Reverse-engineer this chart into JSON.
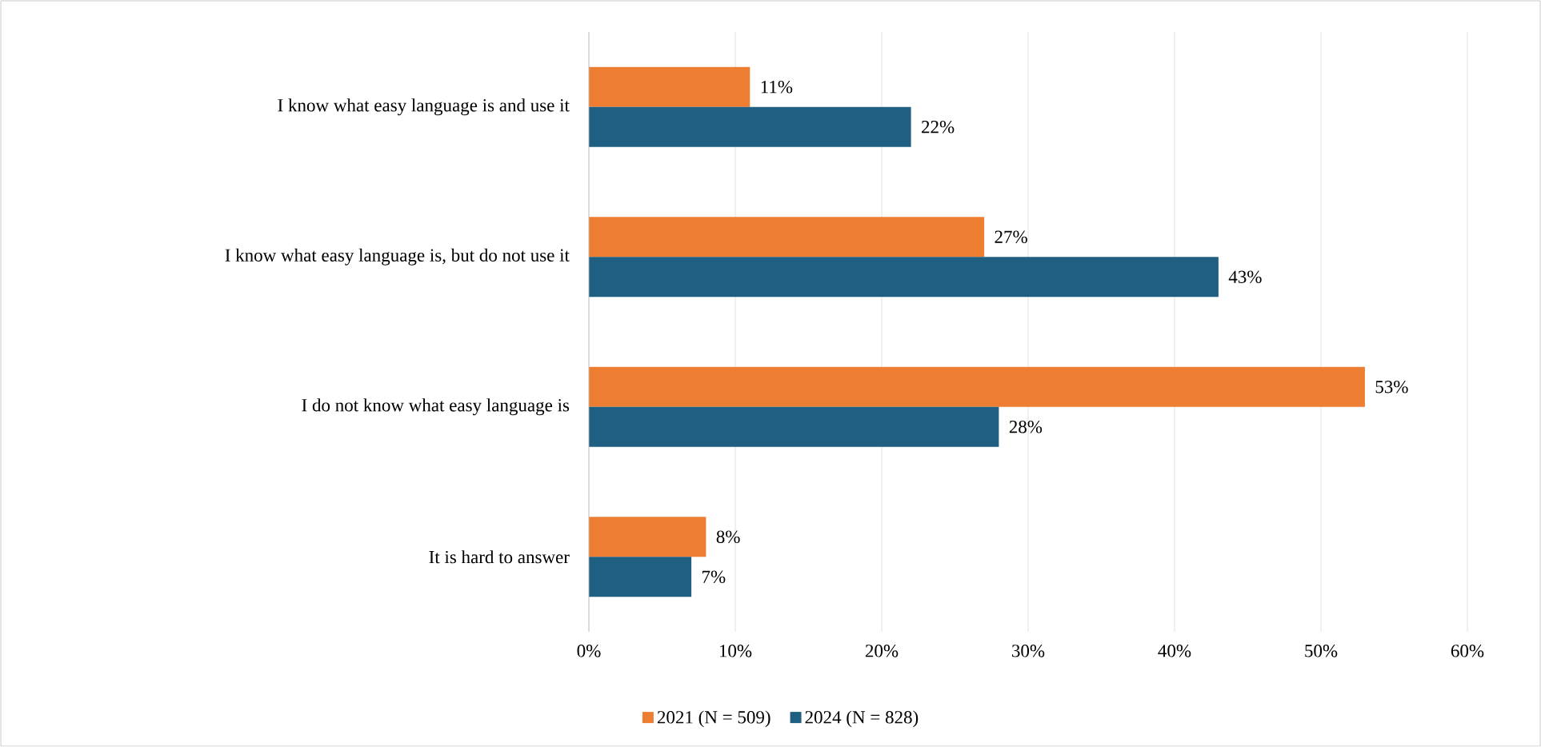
{
  "chart_data": {
    "type": "bar",
    "orientation": "horizontal",
    "categories": [
      "I know what easy language is and use it",
      "I know what easy language is, but do not use it",
      "I do not know what easy language is",
      "It is hard to answer"
    ],
    "series": [
      {
        "name": "2021 (N = 509)",
        "color": "#ed7d31",
        "values": [
          11,
          27,
          53,
          8
        ],
        "value_labels": [
          "11%",
          "27%",
          "53%",
          "8%"
        ]
      },
      {
        "name": "2024 (N = 828)",
        "color": "#1f5f82",
        "values": [
          22,
          43,
          28,
          7
        ],
        "value_labels": [
          "22%",
          "43%",
          "28%",
          "7%"
        ]
      }
    ],
    "xlim": [
      0,
      60
    ],
    "xticks": [
      {
        "value": 0,
        "label": "0%"
      },
      {
        "value": 10,
        "label": "10%"
      },
      {
        "value": 20,
        "label": "20%"
      },
      {
        "value": 30,
        "label": "30%"
      },
      {
        "value": 40,
        "label": "40%"
      },
      {
        "value": 50,
        "label": "50%"
      },
      {
        "value": 60,
        "label": "60%"
      }
    ],
    "grid": "x",
    "legend": "bottom"
  }
}
